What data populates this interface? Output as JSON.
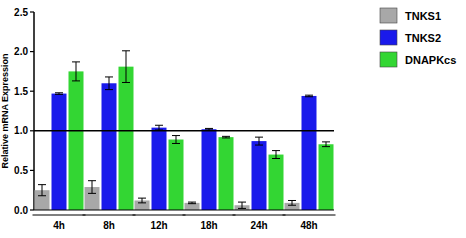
{
  "chart_data": {
    "type": "bar",
    "y_label": "Relative mRNA Expression",
    "categories": [
      "4h",
      "8h",
      "12h",
      "18h",
      "24h",
      "48h"
    ],
    "series": [
      {
        "name": "TNKS1",
        "color": "#a8a8a8",
        "values": [
          0.25,
          0.29,
          0.12,
          0.09,
          0.06,
          0.09
        ],
        "errors": [
          0.07,
          0.08,
          0.03,
          0.01,
          0.04,
          0.03
        ]
      },
      {
        "name": "TNKS2",
        "color": "#1a1aeb",
        "values": [
          1.47,
          1.6,
          1.04,
          1.02,
          0.87,
          1.44
        ],
        "errors": [
          0.01,
          0.08,
          0.03,
          0.01,
          0.05,
          0.01
        ]
      },
      {
        "name": "DNAPKcs",
        "color": "#33d633",
        "values": [
          1.75,
          1.81,
          0.89,
          0.92,
          0.7,
          0.83
        ],
        "errors": [
          0.12,
          0.2,
          0.05,
          0.01,
          0.05,
          0.03
        ]
      }
    ],
    "hline": 1,
    "ylim": [
      0,
      2.5
    ],
    "yticks": [
      {
        "value": 0,
        "label": "0.0"
      },
      0.5,
      {
        "value": 1,
        "label": "1.0"
      },
      1.5,
      {
        "value": 2,
        "label": "2.0"
      },
      2.5
    ],
    "legend": "right",
    "grid": false
  }
}
